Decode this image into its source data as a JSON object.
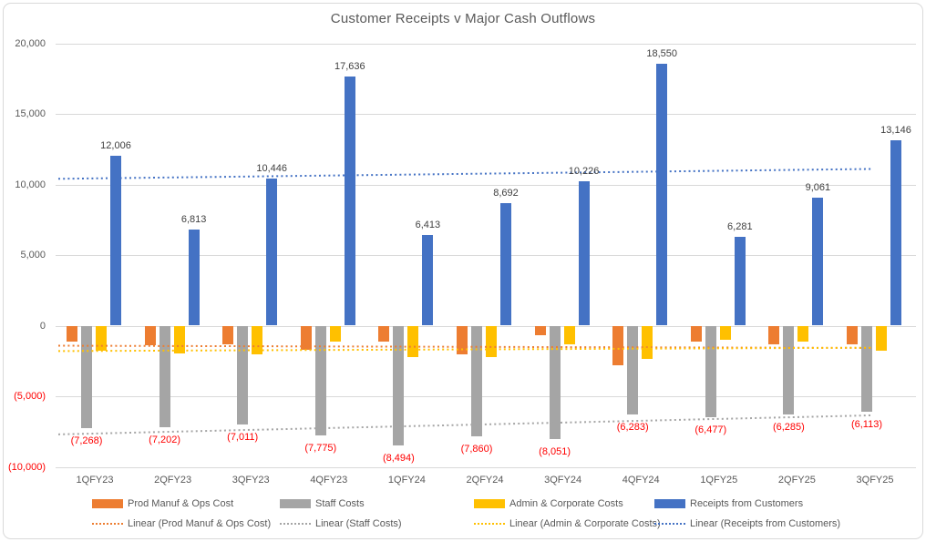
{
  "title": "Customer Receipts v Major Cash Outflows",
  "colors": {
    "blue": "#4472C4",
    "orange": "#ED7D31",
    "gray": "#A5A5A5",
    "yellow": "#FFC000",
    "negative_text": "#FF0000",
    "axis_text": "#595959",
    "value_label_text": "#404040",
    "gridline": "#D9D9D9"
  },
  "chart_data": {
    "type": "bar",
    "title": "Customer Receipts v Major Cash Outflows",
    "categories": [
      "1QFY23",
      "2QFY23",
      "3QFY23",
      "4QFY23",
      "1QFY24",
      "2QFY24",
      "3QFY24",
      "4QFY24",
      "1QFY25",
      "2QFY25",
      "3QFY25"
    ],
    "series": [
      {
        "name": "Prod Manuf & Ops Cost",
        "color_key": "orange",
        "values": [
          -1100,
          -1400,
          -1300,
          -1700,
          -1150,
          -2000,
          -700,
          -2800,
          -1100,
          -1300,
          -1300
        ],
        "values_estimated": true,
        "value_labels": null
      },
      {
        "name": "Staff Costs",
        "color_key": "gray",
        "values": [
          -7268,
          -7202,
          -7011,
          -7775,
          -8494,
          -7860,
          -8051,
          -6283,
          -6477,
          -6285,
          -6113
        ],
        "values_estimated": false,
        "value_labels": [
          "(7,268)",
          "(7,202)",
          "(7,011)",
          "(7,775)",
          "(8,494)",
          "(7,860)",
          "(8,051)",
          "(6,283)",
          "(6,477)",
          "(6,285)",
          "(6,113)"
        ]
      },
      {
        "name": "Admin & Corporate Costs",
        "color_key": "yellow",
        "values": [
          -1800,
          -1950,
          -2050,
          -1150,
          -2250,
          -2250,
          -1350,
          -2350,
          -1000,
          -1150,
          -1800
        ],
        "values_estimated": true,
        "value_labels": null
      },
      {
        "name": "Receipts from Customers",
        "color_key": "blue",
        "values": [
          12006,
          6813,
          10446,
          17636,
          6413,
          8692,
          10226,
          18550,
          6281,
          9061,
          13146
        ],
        "values_estimated": false,
        "value_labels": [
          "12,006",
          "6,813",
          "10,446",
          "17,636",
          "6,413",
          "8,692",
          "10,226",
          "18,550",
          "6,281",
          "9,061",
          "13,146"
        ]
      }
    ],
    "trendlines": [
      {
        "name": "Linear (Prod Manuf & Ops Cost)",
        "color_key": "orange",
        "start_value": -1420,
        "end_value": -1580
      },
      {
        "name": "Linear (Staff Costs)",
        "color_key": "gray",
        "start_value": -7700,
        "end_value": -6350
      },
      {
        "name": "Linear (Admin & Corporate Costs)",
        "color_key": "yellow",
        "start_value": -1800,
        "end_value": -1560
      },
      {
        "name": "Linear (Receipts from Customers)",
        "color_key": "blue",
        "start_value": 10400,
        "end_value": 11100
      }
    ],
    "y_axis": {
      "min": -10000,
      "max": 20000,
      "tick_step": 5000,
      "ticks": [
        {
          "label": "20,000",
          "value": 20000,
          "negative": false
        },
        {
          "label": "15,000",
          "value": 15000,
          "negative": false
        },
        {
          "label": "10,000",
          "value": 10000,
          "negative": false
        },
        {
          "label": "5,000",
          "value": 5000,
          "negative": false
        },
        {
          "label": "0",
          "value": 0,
          "negative": false
        },
        {
          "label": "(5,000)",
          "value": -5000,
          "negative": true
        },
        {
          "label": "(10,000)",
          "value": -10000,
          "negative": true
        }
      ]
    },
    "xlabel": "",
    "ylabel": "",
    "grid": true,
    "legend_position": "bottom"
  }
}
